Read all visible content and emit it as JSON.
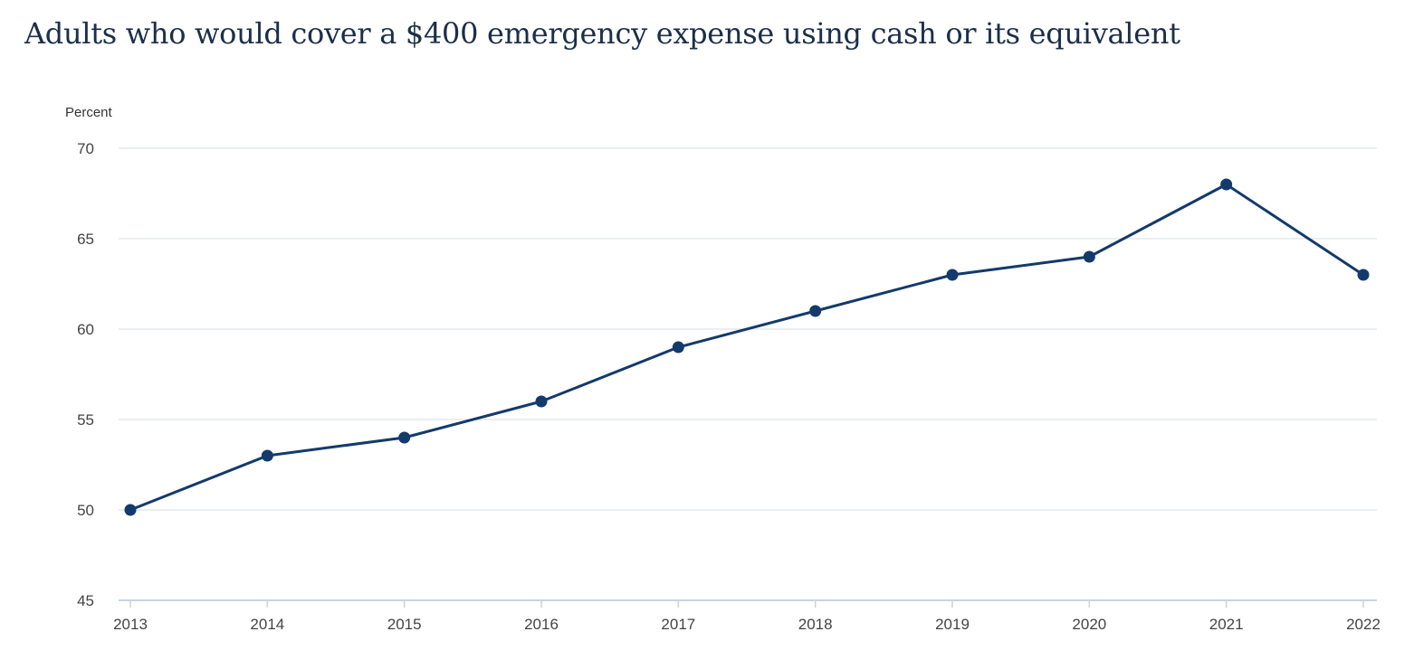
{
  "chart_data": {
    "type": "line",
    "title": "Adults who would cover a $400 emergency expense using cash or its equivalent",
    "ylabel": "Percent",
    "xlabel": "",
    "categories": [
      "2013",
      "2014",
      "2015",
      "2016",
      "2017",
      "2018",
      "2019",
      "2020",
      "2021",
      "2022"
    ],
    "series": [
      {
        "values": [
          50,
          53,
          54,
          56,
          59,
          61,
          63,
          64,
          68,
          63
        ]
      }
    ],
    "ylim": [
      45,
      70
    ],
    "yticks": [
      45,
      50,
      55,
      60,
      65,
      70
    ],
    "grid": true,
    "legend": "none",
    "line_color": "#133a6b"
  }
}
